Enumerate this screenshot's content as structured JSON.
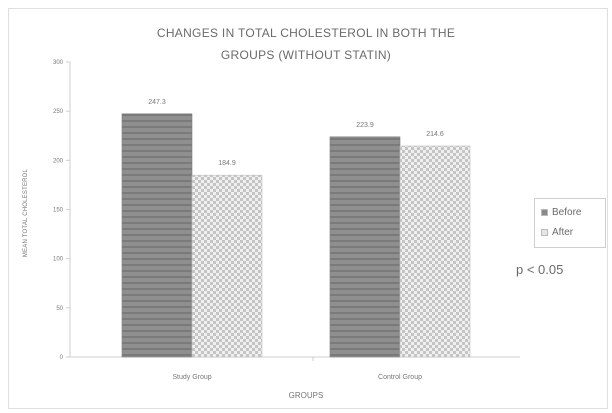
{
  "chart_data": {
    "type": "bar",
    "title_lines": [
      "CHANGES IN TOTAL CHOLESTEROL IN BOTH THE",
      "GROUPS (WITHOUT STATIN)"
    ],
    "xlabel": "GROUPS",
    "ylabel": "MEAN TOTAL CHOLESTEROL",
    "categories": [
      "Study Group",
      "Control Group"
    ],
    "series": [
      {
        "name": "Before",
        "values": [
          247.3,
          223.9
        ],
        "labels": [
          "247.3",
          "223.9"
        ],
        "color": "#8a8a8a",
        "pattern": "horizontal-stripes"
      },
      {
        "name": "After",
        "values": [
          184.9,
          214.6
        ],
        "labels": [
          "184.9",
          "214.6"
        ],
        "color": "#d8d8d8",
        "pattern": "checker"
      }
    ],
    "ylim": [
      0,
      300
    ],
    "yticks": [
      "0",
      "50",
      "100",
      "150",
      "200",
      "250",
      "300"
    ],
    "grid": false,
    "legend_position": "right",
    "annotation": "p < 0.05"
  }
}
